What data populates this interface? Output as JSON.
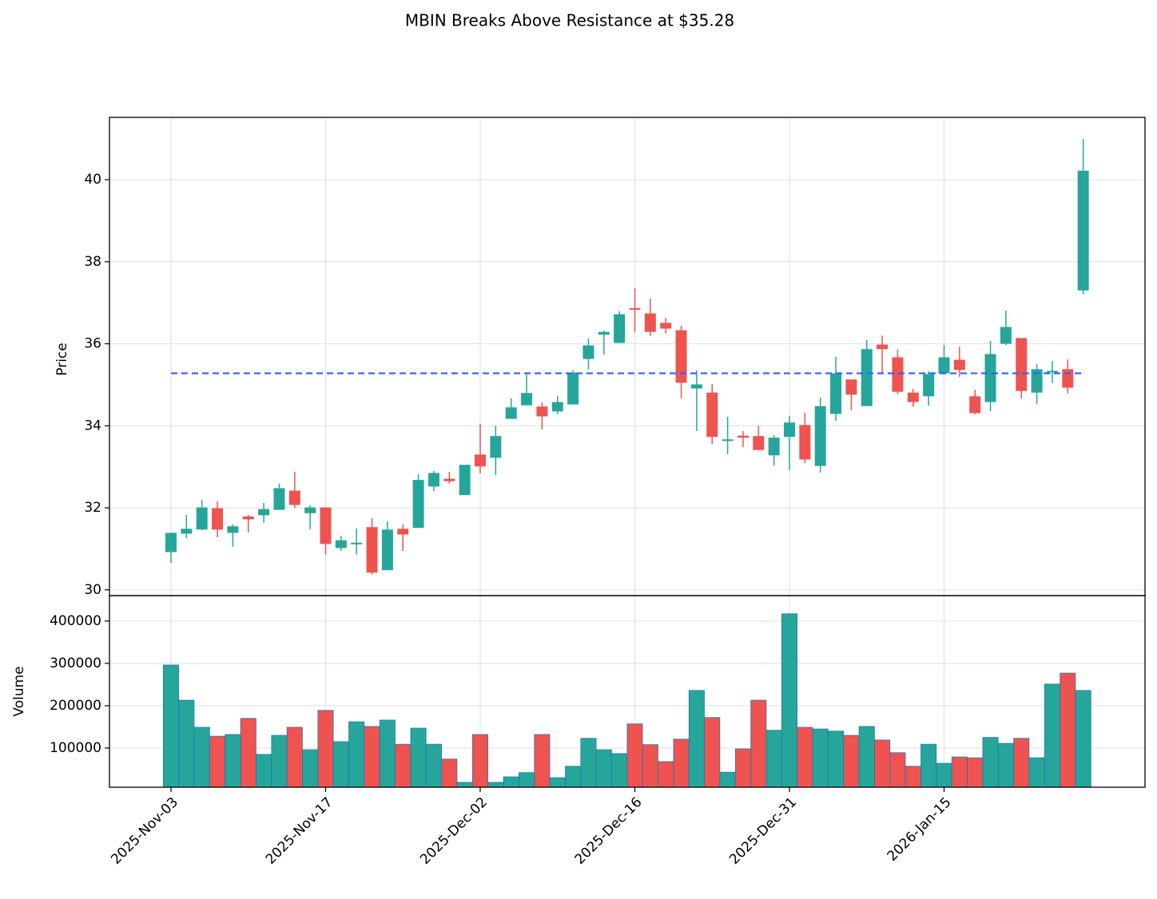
{
  "chart_data": {
    "type": "candlestick",
    "title": "MBIN Breaks Above Resistance at $35.28",
    "ylabel": "Price",
    "volume_label": "Volume",
    "categories": [
      "2025-Nov-03",
      null,
      null,
      null,
      null,
      null,
      null,
      null,
      null,
      null,
      "2025-Nov-17",
      null,
      null,
      null,
      null,
      null,
      null,
      null,
      null,
      null,
      "2025-Dec-02",
      null,
      null,
      null,
      null,
      null,
      null,
      null,
      null,
      null,
      "2025-Dec-16",
      null,
      null,
      null,
      null,
      null,
      null,
      null,
      null,
      null,
      "2025-Dec-31",
      null,
      null,
      null,
      null,
      null,
      null,
      null,
      null,
      null,
      "2026-Jan-15",
      null,
      null,
      null,
      null,
      null,
      null,
      null,
      null,
      null
    ],
    "open": [
      30.93,
      31.38,
      31.48,
      31.98,
      31.4,
      31.78,
      31.83,
      31.96,
      32.41,
      31.88,
      32.0,
      31.03,
      31.12,
      31.52,
      30.49,
      31.48,
      31.52,
      32.53,
      32.7,
      32.32,
      33.29,
      33.23,
      34.18,
      34.51,
      34.46,
      34.36,
      34.53,
      35.64,
      36.23,
      36.03,
      36.86,
      36.73,
      36.5,
      36.32,
      34.92,
      34.8,
      33.64,
      33.75,
      33.74,
      33.29,
      33.74,
      34.01,
      33.03,
      34.3,
      35.12,
      34.49,
      35.97,
      35.66,
      34.8,
      34.73,
      35.29,
      35.6,
      34.71,
      34.59,
      36.01,
      36.13,
      34.82,
      35.31,
      35.37,
      37.31
    ],
    "high": [
      31.4,
      31.83,
      32.2,
      32.16,
      31.6,
      31.83,
      32.12,
      32.59,
      32.88,
      32.06,
      32.0,
      31.32,
      31.5,
      31.75,
      31.67,
      31.6,
      32.82,
      32.9,
      32.88,
      33.04,
      34.05,
      34.0,
      34.67,
      35.25,
      34.57,
      34.73,
      35.35,
      36.13,
      36.32,
      36.79,
      37.35,
      37.1,
      36.63,
      36.44,
      35.35,
      35.02,
      34.22,
      33.87,
      34.0,
      33.77,
      34.24,
      34.32,
      34.69,
      35.68,
      35.12,
      36.09,
      36.2,
      35.86,
      34.9,
      35.33,
      35.97,
      35.93,
      34.88,
      36.07,
      36.81,
      36.13,
      35.51,
      35.58,
      35.62,
      40.99
    ],
    "low": [
      30.65,
      31.26,
      31.46,
      31.28,
      31.05,
      31.4,
      31.63,
      31.96,
      32.0,
      31.48,
      30.86,
      30.95,
      30.86,
      30.37,
      30.49,
      30.95,
      31.52,
      32.41,
      32.59,
      32.32,
      32.84,
      32.8,
      34.18,
      34.51,
      33.91,
      34.28,
      34.53,
      35.37,
      35.74,
      36.03,
      36.28,
      36.19,
      36.25,
      34.67,
      33.87,
      33.56,
      33.31,
      33.48,
      33.42,
      33.03,
      32.92,
      33.09,
      32.86,
      34.12,
      34.38,
      34.49,
      35.29,
      34.77,
      34.46,
      34.49,
      35.25,
      35.19,
      34.28,
      34.36,
      35.97,
      34.67,
      34.53,
      35.04,
      34.79,
      37.2
    ],
    "close": [
      31.38,
      31.48,
      32.0,
      31.48,
      31.54,
      31.73,
      31.96,
      32.47,
      32.08,
      32.0,
      31.13,
      31.2,
      31.14,
      30.43,
      31.46,
      31.36,
      32.67,
      32.84,
      32.66,
      33.04,
      33.02,
      33.74,
      34.44,
      34.79,
      34.24,
      34.57,
      35.29,
      35.95,
      36.28,
      36.71,
      36.84,
      36.3,
      36.38,
      35.06,
      35.0,
      33.74,
      33.66,
      33.72,
      33.42,
      33.7,
      34.07,
      33.19,
      34.47,
      35.27,
      34.77,
      35.86,
      35.88,
      34.84,
      34.59,
      35.25,
      35.66,
      35.37,
      34.32,
      35.74,
      36.4,
      34.86,
      35.37,
      35.33,
      34.94,
      40.21
    ],
    "volume": [
      296000,
      213000,
      149000,
      128000,
      132000,
      170000,
      85000,
      130000,
      149000,
      96000,
      189000,
      115000,
      162000,
      151000,
      166000,
      109000,
      147000,
      109000,
      74000,
      19000,
      132000,
      19000,
      32000,
      42000,
      132000,
      30000,
      57000,
      123000,
      96000,
      87000,
      157000,
      108000,
      68000,
      121000,
      236000,
      172000,
      43000,
      98000,
      213000,
      142000,
      417000,
      149000,
      145000,
      140000,
      130000,
      151000,
      119000,
      89000,
      57000,
      109000,
      64000,
      79000,
      77000,
      125000,
      111000,
      123000,
      77000,
      251000,
      277000,
      236000
    ],
    "up_color": "#26a69a",
    "down_color": "#ef5350",
    "resistance": 35.28,
    "resistance_color": "#2962ff",
    "ylim": [
      29.86,
      41.52
    ],
    "yticks": [
      30,
      32,
      34,
      36,
      38,
      40
    ],
    "volume_ylim": [
      7500,
      460000
    ],
    "volume_yticks": [
      100000,
      200000,
      300000,
      400000
    ],
    "grid": true
  }
}
